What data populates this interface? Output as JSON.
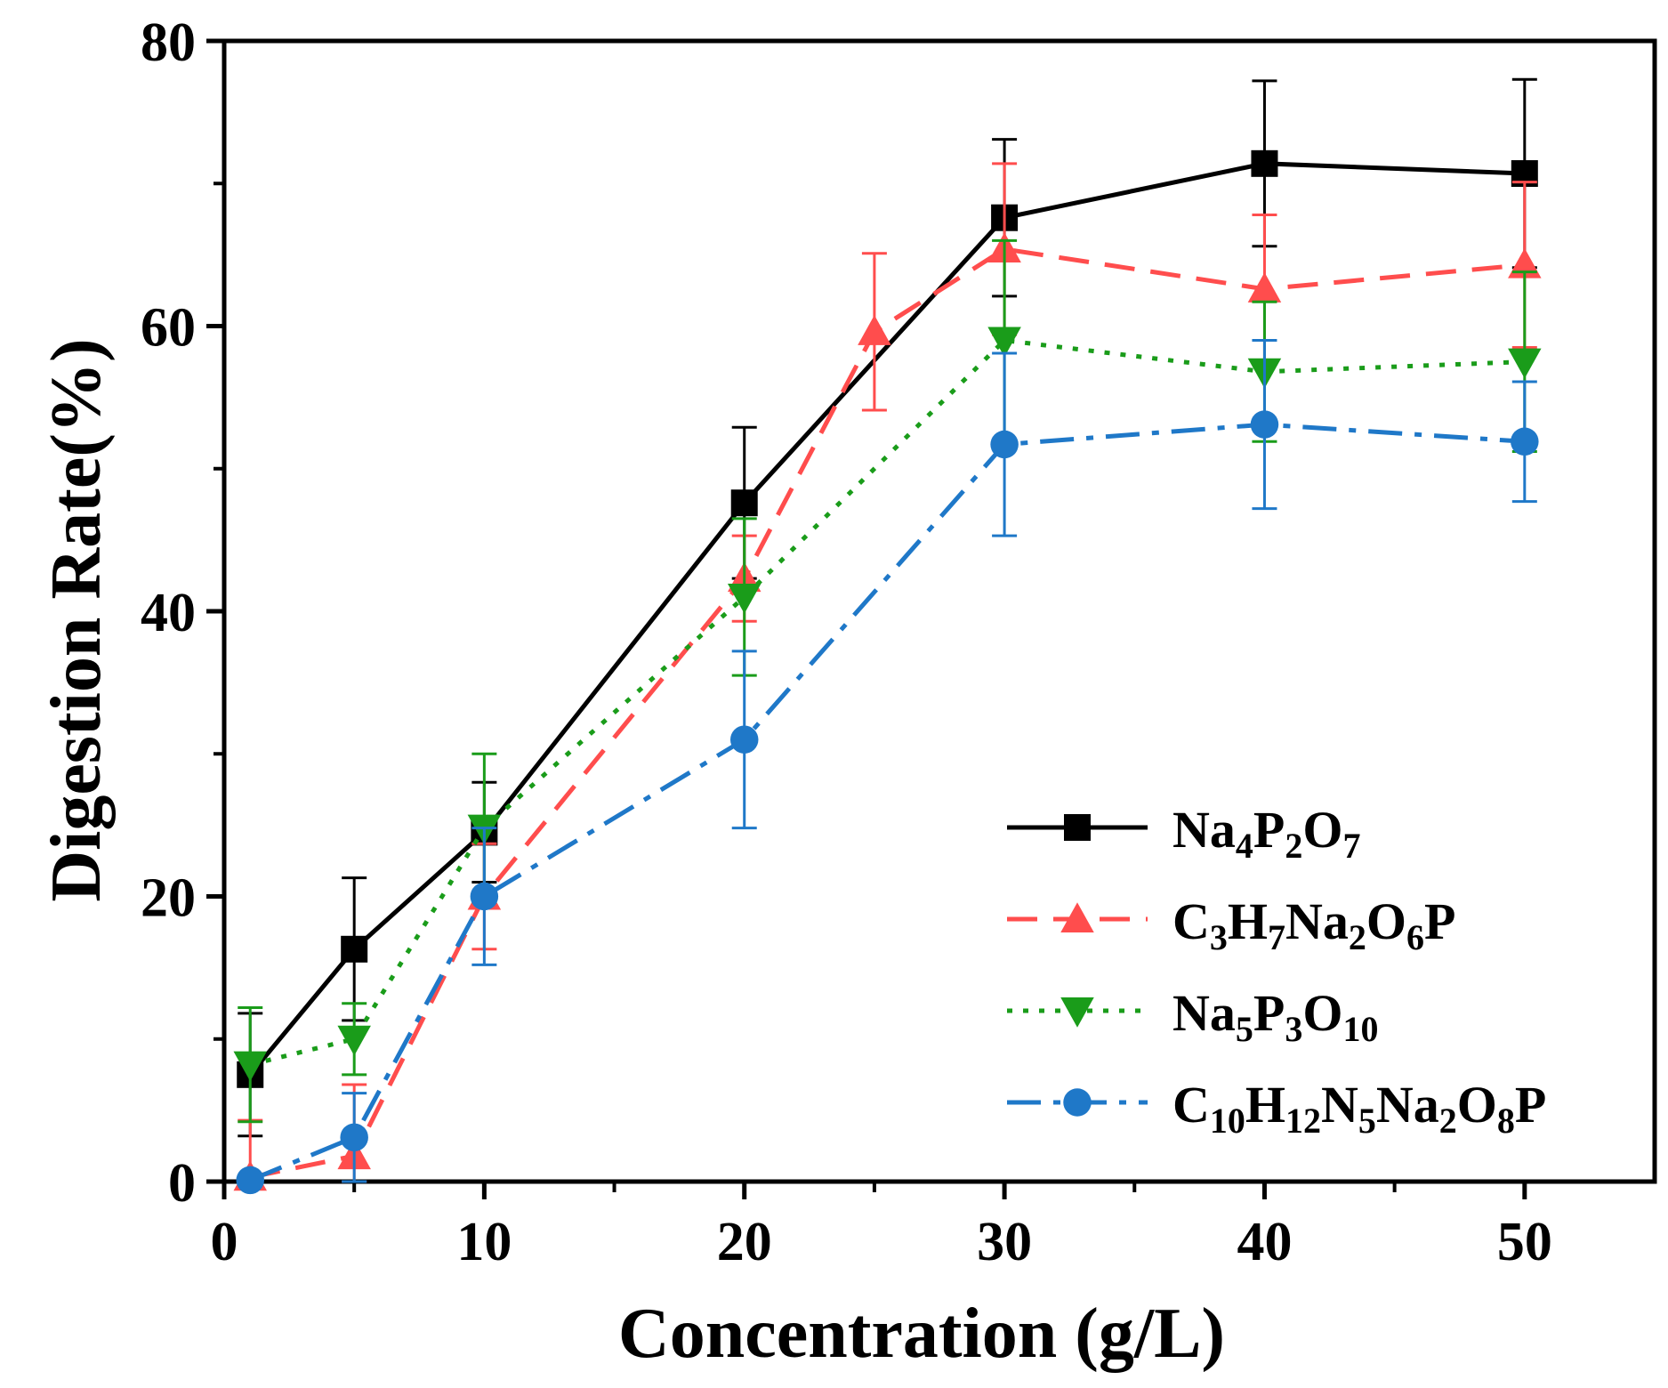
{
  "chart_data": {
    "type": "line",
    "title": "",
    "xlabel": "Concentration (g/L)",
    "ylabel": "Digestion Rate(%)",
    "xlim": [
      0,
      55
    ],
    "ylim": [
      0,
      80
    ],
    "xticks": [
      0,
      10,
      20,
      30,
      40,
      50
    ],
    "yticks": [
      0,
      20,
      40,
      60,
      80
    ],
    "x_tick_labels": [
      "0",
      "10",
      "20",
      "30",
      "40",
      "50"
    ],
    "y_tick_labels": [
      "0",
      "20",
      "40",
      "60",
      "80"
    ],
    "grid": false,
    "legend_position": "bottom-right",
    "series": [
      {
        "name": "Na4P2O7",
        "label_parts": [
          [
            "Na",
            ""
          ],
          [
            "4",
            "sub"
          ],
          [
            "P",
            ""
          ],
          [
            "2",
            "sub"
          ],
          [
            "O",
            ""
          ],
          [
            "7",
            "sub"
          ]
        ],
        "color": "#000000",
        "marker": "square",
        "line_style": "solid",
        "x": [
          1,
          5,
          10,
          20,
          30,
          40,
          50
        ],
        "y": [
          7.5,
          16.3,
          24.5,
          47.6,
          67.6,
          71.4,
          70.7
        ],
        "error": [
          4.3,
          5.0,
          3.5,
          5.3,
          5.5,
          5.8,
          6.6
        ]
      },
      {
        "name": "C3H7Na2O6P",
        "label_parts": [
          [
            "C",
            ""
          ],
          [
            "3",
            "sub"
          ],
          [
            "H",
            ""
          ],
          [
            "7",
            "sub"
          ],
          [
            "Na",
            ""
          ],
          [
            "2",
            "sub"
          ],
          [
            "O",
            ""
          ],
          [
            "6",
            "sub"
          ],
          [
            "P",
            ""
          ]
        ],
        "color": "#ff4d4d",
        "marker": "triangle-up",
        "line_style": "dashed",
        "x": [
          1,
          5,
          10,
          20,
          25,
          30,
          40,
          50
        ],
        "y": [
          0.3,
          1.8,
          20.0,
          42.3,
          59.6,
          65.4,
          62.6,
          64.3
        ],
        "error": [
          4.0,
          5.0,
          3.7,
          3.0,
          5.5,
          6.0,
          5.2,
          5.8
        ]
      },
      {
        "name": "Na5P3O10",
        "label_parts": [
          [
            "Na",
            ""
          ],
          [
            "5",
            "sub"
          ],
          [
            "P",
            ""
          ],
          [
            "3",
            "sub"
          ],
          [
            "O",
            ""
          ],
          [
            "10",
            "sub"
          ]
        ],
        "color": "#1a9c1a",
        "marker": "triangle-down",
        "line_style": "dotted",
        "x": [
          1,
          5,
          10,
          20,
          30,
          40,
          50
        ],
        "y": [
          8.2,
          10.0,
          24.8,
          41.0,
          59.0,
          56.8,
          57.5
        ],
        "error": [
          4.0,
          2.5,
          5.2,
          5.5,
          7.0,
          4.9,
          6.3
        ]
      },
      {
        "name": "C10H12N5Na2O8P",
        "label_parts": [
          [
            "C",
            ""
          ],
          [
            "10",
            "sub"
          ],
          [
            "H",
            ""
          ],
          [
            "12",
            "sub"
          ],
          [
            "N",
            ""
          ],
          [
            "5",
            "sub"
          ],
          [
            "Na",
            ""
          ],
          [
            "2",
            "sub"
          ],
          [
            "O",
            ""
          ],
          [
            "8",
            "sub"
          ],
          [
            "P",
            ""
          ]
        ],
        "color": "#1f78c8",
        "marker": "circle",
        "line_style": "dash-dot",
        "x": [
          1,
          5,
          10,
          20,
          30,
          40,
          50
        ],
        "y": [
          0.1,
          3.1,
          20.0,
          31.0,
          51.7,
          53.1,
          51.9
        ],
        "error": [
          0.0,
          3.1,
          4.8,
          6.2,
          6.4,
          5.9,
          4.2
        ]
      }
    ]
  }
}
